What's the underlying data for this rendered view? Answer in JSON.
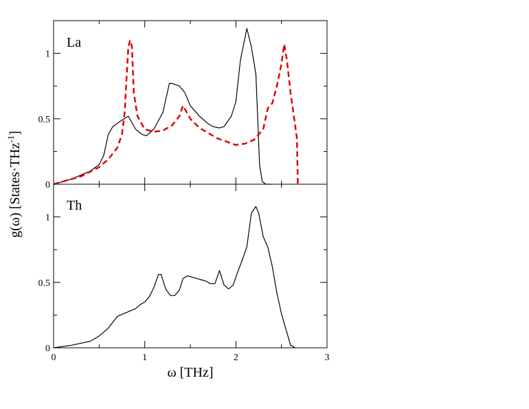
{
  "chart_data": [
    {
      "type": "line",
      "panel_label": "La",
      "xlim": [
        0,
        3
      ],
      "ylim": [
        0,
        1.25
      ],
      "x_ticks": [
        "0",
        "1",
        "2",
        "3"
      ],
      "y_ticks": [
        "0",
        "0.5",
        "1"
      ],
      "y_tick_values": [
        0,
        0.5,
        1
      ],
      "series": [
        {
          "style": "solid",
          "color": "#000000",
          "x": [
            0,
            0.2,
            0.4,
            0.5,
            0.55,
            0.6,
            0.65,
            0.75,
            0.82,
            0.9,
            0.97,
            1.02,
            1.1,
            1.2,
            1.27,
            1.3,
            1.38,
            1.44,
            1.5,
            1.6,
            1.7,
            1.75,
            1.82,
            1.87,
            1.95,
            2.0,
            2.05,
            2.12,
            2.17,
            2.22,
            2.26,
            2.29,
            2.33,
            2.4
          ],
          "y": [
            0,
            0.04,
            0.1,
            0.15,
            0.22,
            0.38,
            0.44,
            0.49,
            0.52,
            0.42,
            0.38,
            0.37,
            0.42,
            0.55,
            0.77,
            0.77,
            0.75,
            0.7,
            0.6,
            0.52,
            0.46,
            0.44,
            0.43,
            0.44,
            0.52,
            0.63,
            0.95,
            1.19,
            1.05,
            0.84,
            0.15,
            0.02,
            0.0,
            0.0
          ]
        },
        {
          "style": "dashed",
          "color": "#e00000",
          "x": [
            0,
            0.3,
            0.5,
            0.6,
            0.7,
            0.75,
            0.78,
            0.8,
            0.82,
            0.84,
            0.86,
            0.88,
            0.92,
            1.0,
            1.1,
            1.2,
            1.3,
            1.38,
            1.42,
            1.5,
            1.6,
            1.8,
            2.0,
            2.1,
            2.2,
            2.3,
            2.35,
            2.4,
            2.45,
            2.5,
            2.53,
            2.56,
            2.6,
            2.65,
            2.67,
            2.68
          ],
          "y": [
            0,
            0.06,
            0.13,
            0.19,
            0.28,
            0.38,
            0.55,
            0.8,
            1.05,
            1.1,
            1.05,
            0.7,
            0.52,
            0.42,
            0.4,
            0.41,
            0.45,
            0.52,
            0.6,
            0.5,
            0.43,
            0.35,
            0.3,
            0.31,
            0.34,
            0.42,
            0.58,
            0.62,
            0.75,
            0.92,
            1.07,
            0.95,
            0.7,
            0.45,
            0.35,
            0.0
          ]
        }
      ]
    },
    {
      "type": "line",
      "panel_label": "Th",
      "xlim": [
        0,
        3
      ],
      "ylim": [
        0,
        1.25
      ],
      "x_ticks": [
        "0",
        "1",
        "2",
        "3"
      ],
      "y_ticks": [
        "0",
        "0.5",
        "1"
      ],
      "y_tick_values": [
        0,
        0.5,
        1
      ],
      "series": [
        {
          "style": "solid",
          "color": "#000000",
          "x": [
            0,
            0.2,
            0.4,
            0.5,
            0.6,
            0.7,
            0.8,
            0.9,
            0.95,
            1.0,
            1.05,
            1.1,
            1.15,
            1.18,
            1.23,
            1.28,
            1.33,
            1.38,
            1.42,
            1.47,
            1.52,
            1.57,
            1.62,
            1.67,
            1.72,
            1.77,
            1.82,
            1.87,
            1.92,
            1.97,
            2.02,
            2.07,
            2.12,
            2.17,
            2.22,
            2.25,
            2.3,
            2.35,
            2.4,
            2.45,
            2.5,
            2.55,
            2.6,
            2.65
          ],
          "y": [
            0,
            0.02,
            0.05,
            0.09,
            0.15,
            0.24,
            0.27,
            0.3,
            0.33,
            0.35,
            0.39,
            0.46,
            0.56,
            0.56,
            0.45,
            0.4,
            0.4,
            0.44,
            0.53,
            0.55,
            0.54,
            0.53,
            0.52,
            0.51,
            0.49,
            0.49,
            0.59,
            0.48,
            0.45,
            0.48,
            0.58,
            0.67,
            0.77,
            1.03,
            1.08,
            1.03,
            0.85,
            0.77,
            0.62,
            0.42,
            0.26,
            0.14,
            0.02,
            0.0
          ]
        }
      ]
    }
  ],
  "xlabel": "ω [THz]",
  "ylabel_main": "g(ω) [States·THz",
  "ylabel_exponent": "-1",
  "ylabel_close": "]"
}
